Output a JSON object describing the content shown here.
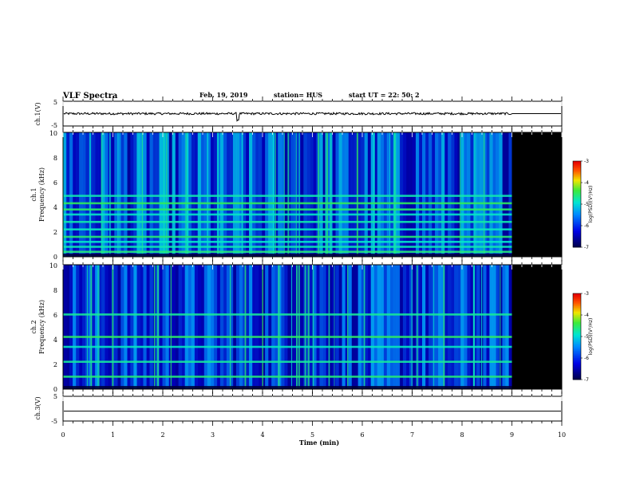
{
  "header": {
    "title": "VLF Spectra",
    "date": "Feb. 19, 2019",
    "station": "station= HUS",
    "start": "start  UT  =   22: 50: 2"
  },
  "chart_data": [
    {
      "type": "line",
      "panel": "ch1-waveform",
      "ylabel": "ch.1(V)",
      "ylim": [
        -5,
        5
      ],
      "y_ticklabels": [
        "5",
        "-5"
      ],
      "x_range": [
        0,
        10
      ],
      "data_end_min": 9.0,
      "level": 0.0,
      "dip_at_min": 3.5
    },
    {
      "type": "heatmap",
      "panel": "ch1-spectrogram",
      "ylabel": "ch.1\nFrequency  (kHz)",
      "ylim": [
        0,
        10
      ],
      "y_ticklabels": [
        "0",
        "2",
        "4",
        "6",
        "8",
        "10"
      ],
      "x_range": [
        0,
        10
      ],
      "data_end_min": 9.0,
      "colorbar": {
        "label": "log(PSD)(V²/Hz)",
        "range": [
          -7,
          -3
        ],
        "ticklabels": [
          "-3",
          "-4",
          "-5",
          "-6",
          "-7"
        ]
      },
      "bands_khz": [
        0.4,
        0.8,
        1.2,
        1.6,
        2.2,
        2.8,
        3.4,
        3.8,
        4.3,
        4.9
      ]
    },
    {
      "type": "heatmap",
      "panel": "ch2-spectrogram",
      "ylabel": "ch.2\nFrequency  (kHz)",
      "ylim": [
        0,
        10
      ],
      "y_ticklabels": [
        "0",
        "2",
        "4",
        "6",
        "8",
        "10"
      ],
      "x_range": [
        0,
        10
      ],
      "data_end_min": 9.0,
      "colorbar": {
        "label": "log(PSD)(V²/Hz)",
        "range": [
          -7,
          -3
        ],
        "ticklabels": [
          "-3",
          "-4",
          "-5",
          "-6",
          "-7"
        ]
      },
      "bands_khz": [
        1.0,
        2.2,
        3.4,
        4.2,
        6.0
      ]
    },
    {
      "type": "line",
      "panel": "ch3-waveform",
      "ylabel": "ch.3(V)",
      "ylim": [
        -5,
        5
      ],
      "y_ticklabels": [
        "5",
        "-5"
      ],
      "x_range": [
        0,
        10
      ],
      "level": -1.0
    }
  ],
  "xaxis": {
    "label": "Time  (min)",
    "ticks": [
      0,
      1,
      2,
      3,
      4,
      5,
      6,
      7,
      8,
      9,
      10
    ]
  }
}
